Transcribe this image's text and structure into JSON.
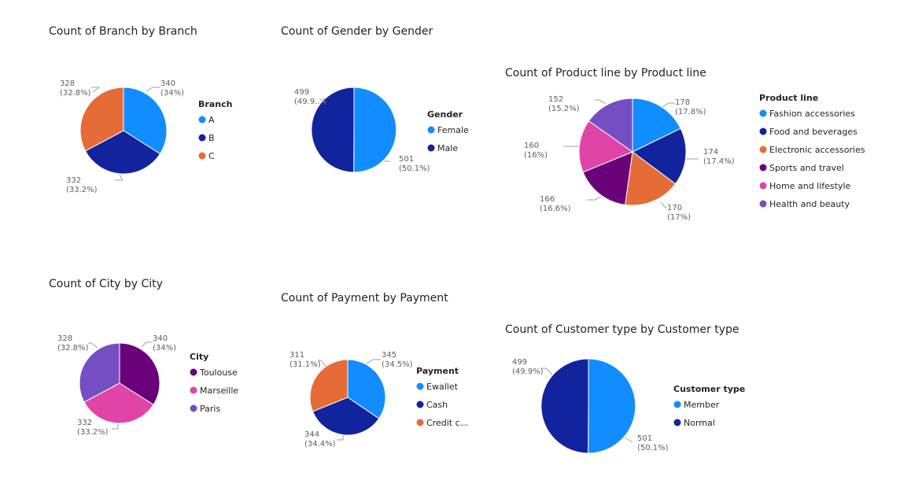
{
  "chart_data": [
    {
      "type": "pie",
      "title": "Count of Branch by Branch",
      "legend_title": "Branch",
      "legend_placement": "right",
      "categories": [
        "A",
        "B",
        "C"
      ],
      "values": [
        340,
        332,
        328
      ],
      "percent_labels": [
        "(34%)",
        "(33.2%)",
        "(32.8%)"
      ],
      "colors": [
        "#118DFF",
        "#12239E",
        "#E66C37"
      ]
    },
    {
      "type": "pie",
      "title": "Count of Gender by Gender",
      "legend_title": "Gender",
      "legend_placement": "right",
      "categories": [
        "Female",
        "Male"
      ],
      "values": [
        501,
        499
      ],
      "percent_labels": [
        "(50.1%)",
        "(49.9...)"
      ],
      "colors": [
        "#118DFF",
        "#12239E"
      ]
    },
    {
      "type": "pie",
      "title": "Count of Product line by Product line",
      "legend_title": "Product line",
      "legend_placement": "right",
      "categories": [
        "Fashion accessories",
        "Food and beverages",
        "Electronic accessories",
        "Sports and travel",
        "Home and lifestyle",
        "Health and beauty"
      ],
      "values": [
        178,
        174,
        170,
        166,
        160,
        152
      ],
      "percent_labels": [
        "(17.8%)",
        "(17.4%)",
        "(17%)",
        "(16.6%)",
        "(16%)",
        "(15.2%)"
      ],
      "colors": [
        "#118DFF",
        "#12239E",
        "#E66C37",
        "#6B007B",
        "#E044A7",
        "#744EC2"
      ]
    },
    {
      "type": "pie",
      "title": "Count of City by City",
      "legend_title": "City",
      "legend_placement": "right",
      "categories": [
        "Toulouse",
        "Marseille",
        "Paris"
      ],
      "values": [
        340,
        332,
        328
      ],
      "percent_labels": [
        "(34%)",
        "(33.2%)",
        "(32.8%)"
      ],
      "colors": [
        "#6B007B",
        "#E044A7",
        "#744EC2"
      ]
    },
    {
      "type": "pie",
      "title": "Count of Payment by Payment",
      "legend_title": "Payment",
      "legend_placement": "right",
      "categories": [
        "Ewallet",
        "Cash",
        "Credit c..."
      ],
      "values": [
        345,
        344,
        311
      ],
      "percent_labels": [
        "(34.5%)",
        "(34.4%)",
        "(31.1%)"
      ],
      "colors": [
        "#118DFF",
        "#12239E",
        "#E66C37"
      ]
    },
    {
      "type": "pie",
      "title": "Count of Customer type by Customer type",
      "legend_title": "Customer type",
      "legend_placement": "right",
      "categories": [
        "Member",
        "Normal"
      ],
      "values": [
        501,
        499
      ],
      "percent_labels": [
        "(50.1%)",
        "(49.9%)"
      ],
      "colors": [
        "#118DFF",
        "#12239E"
      ]
    }
  ]
}
